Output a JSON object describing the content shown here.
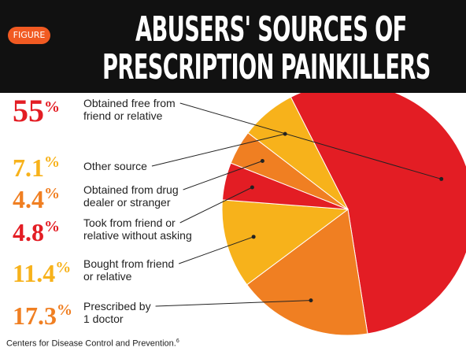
{
  "header": {
    "badge": "FIGURE",
    "title_line1": "ABUSERS' SOURCES OF",
    "title_line2": "PRESCRIPTION PAINKILLERS"
  },
  "source": "Centers for Disease Control and Prevention.",
  "source_ref": "6",
  "chart_data": {
    "type": "pie",
    "title": "ABUSERS' SOURCES OF PRESCRIPTION PAINKILLERS",
    "slices": [
      {
        "value": 55,
        "display": "55",
        "label": [
          "Obtained free from",
          "friend or relative"
        ],
        "color": "#e31d24"
      },
      {
        "value": 17.3,
        "display": "17.3",
        "label": [
          "Prescribed by",
          "1 doctor"
        ],
        "color": "#f07f22"
      },
      {
        "value": 11.4,
        "display": "11.4",
        "label": [
          "Bought from friend",
          "or relative"
        ],
        "color": "#f7b21b"
      },
      {
        "value": 4.8,
        "display": "4.8",
        "label": [
          "Took from friend or",
          "relative without asking"
        ],
        "color": "#e31d24"
      },
      {
        "value": 4.4,
        "display": "4.4",
        "label": [
          "Obtained from drug",
          "dealer or stranger"
        ],
        "color": "#f07f22"
      },
      {
        "value": 7.1,
        "display": "7.1",
        "label": [
          "Other source"
        ],
        "color": "#f7b21b"
      }
    ],
    "percent_sign": "%"
  }
}
